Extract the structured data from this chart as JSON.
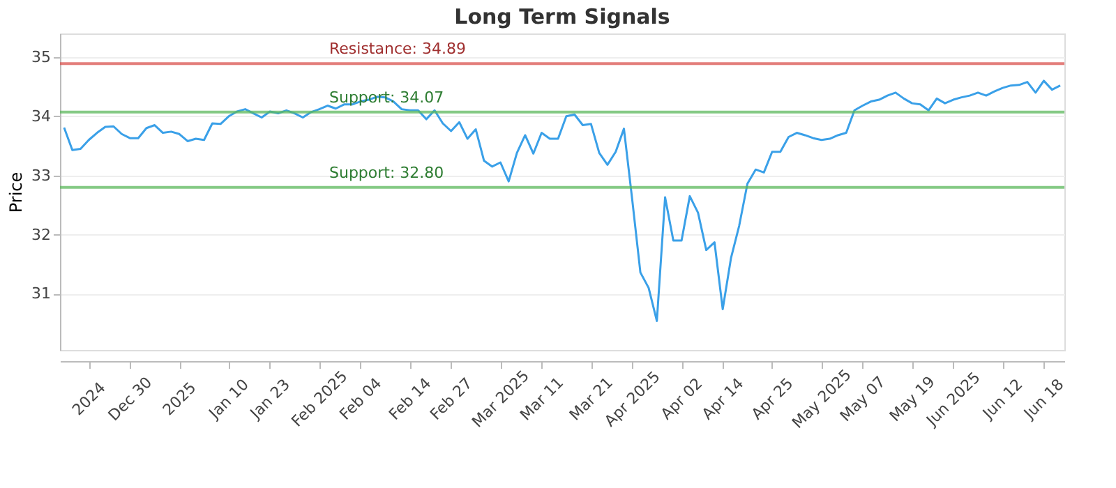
{
  "chart_data": {
    "type": "line",
    "title": "Long Term Signals",
    "ylabel": "Price",
    "categories": [
      null,
      null,
      null,
      "2024",
      null,
      null,
      null,
      null,
      "Dec 30",
      null,
      null,
      null,
      null,
      null,
      "2025",
      null,
      null,
      null,
      null,
      null,
      "Jan 10",
      null,
      null,
      null,
      null,
      "Jan 23",
      null,
      null,
      null,
      null,
      null,
      "Feb 2025",
      null,
      null,
      null,
      null,
      "Feb 04",
      null,
      null,
      null,
      null,
      null,
      "Feb 14",
      null,
      null,
      null,
      null,
      "Feb 27",
      null,
      null,
      null,
      null,
      null,
      "Mar 2025",
      null,
      null,
      null,
      null,
      "Mar 11",
      null,
      null,
      null,
      null,
      null,
      "Mar 21",
      null,
      null,
      null,
      null,
      "Apr 2025",
      null,
      null,
      null,
      null,
      null,
      "Apr 02",
      null,
      null,
      null,
      null,
      "Apr 14",
      null,
      null,
      null,
      null,
      null,
      "Apr 25",
      null,
      null,
      null,
      null,
      null,
      "May 2025",
      null,
      null,
      null,
      null,
      "May 07",
      null,
      null,
      null,
      null,
      null,
      "May 19",
      null,
      null,
      null,
      null,
      "Jun 2025",
      null,
      null,
      null,
      null,
      null,
      "Jun 12",
      null,
      null,
      null,
      null,
      "Jun 18",
      null,
      null
    ],
    "series": [
      {
        "color": "#3aa0e8",
        "values": [
          33.81,
          33.43,
          33.45,
          33.6,
          33.72,
          33.82,
          33.83,
          33.7,
          33.63,
          33.63,
          33.8,
          33.85,
          33.72,
          33.74,
          33.7,
          33.58,
          33.62,
          33.6,
          33.88,
          33.87,
          34.0,
          34.08,
          34.12,
          34.05,
          33.98,
          34.08,
          34.05,
          34.1,
          34.05,
          33.98,
          34.07,
          34.12,
          34.18,
          34.13,
          34.2,
          34.2,
          34.25,
          34.28,
          34.33,
          34.32,
          34.25,
          34.12,
          34.1,
          34.1,
          33.95,
          34.1,
          33.88,
          33.75,
          33.9,
          33.62,
          33.78,
          33.25,
          33.15,
          33.22,
          32.9,
          33.38,
          33.68,
          33.37,
          33.72,
          33.62,
          33.62,
          34.0,
          34.03,
          33.85,
          33.87,
          33.38,
          33.18,
          33.4,
          33.79,
          32.6,
          31.36,
          31.1,
          30.54,
          32.63,
          31.9,
          31.9,
          32.65,
          32.37,
          31.74,
          31.87,
          30.74,
          31.6,
          32.15,
          32.86,
          33.1,
          33.05,
          33.4,
          33.4,
          33.65,
          33.72,
          33.68,
          33.63,
          33.6,
          33.62,
          33.68,
          33.72,
          34.1,
          34.18,
          34.25,
          34.28,
          34.35,
          34.4,
          34.3,
          34.22,
          34.2,
          34.1,
          34.3,
          34.22,
          34.28,
          34.32,
          34.35,
          34.4,
          34.35,
          34.42,
          34.48,
          34.52,
          34.53,
          34.58,
          34.4,
          34.6,
          34.45,
          34.52
        ]
      }
    ],
    "ylim": [
      30.05,
      35.4
    ],
    "yticks": [
      31,
      32,
      33,
      34,
      35
    ],
    "grid": "y",
    "marker": "none",
    "line_style": "solid",
    "ref_lines": [
      {
        "axis": "y",
        "value": 34.89,
        "label": "Resistance: 34.89",
        "color": "#d9534f"
      },
      {
        "axis": "y",
        "value": 34.07,
        "label": "Support: 34.07",
        "color": "#5cb85c"
      },
      {
        "axis": "y",
        "value": 32.8,
        "label": "Support: 32.80",
        "color": "#5cb85c"
      }
    ]
  }
}
